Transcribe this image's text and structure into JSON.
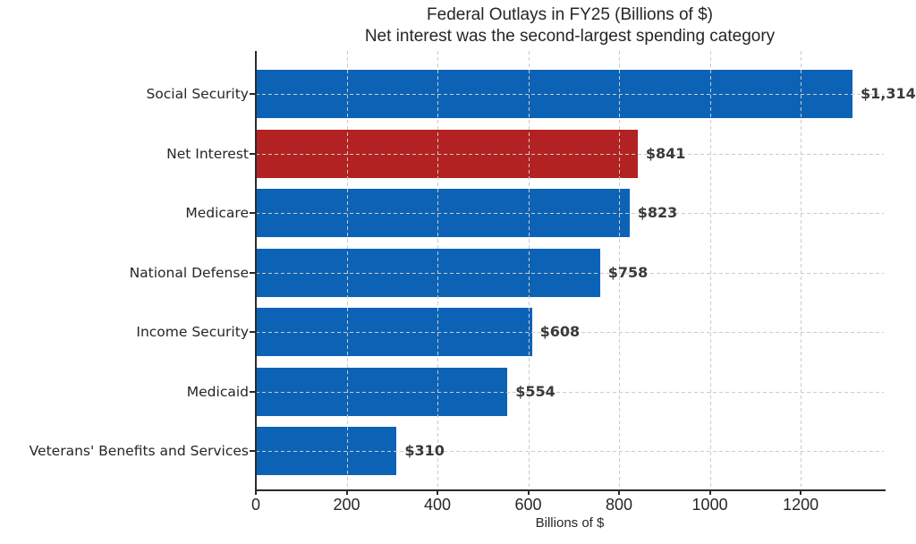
{
  "chart_data": {
    "type": "bar",
    "orientation": "horizontal",
    "title": "Federal Outlays in FY25 (Billions of $)",
    "subtitle": "Net interest was the second-largest spending category",
    "xlabel": "Billions of $",
    "categories": [
      "Social Security",
      "Net Interest",
      "Medicare",
      "National Defense",
      "Income Security",
      "Medicaid",
      "Veterans' Benefits and Services"
    ],
    "values": [
      1314,
      841,
      823,
      758,
      608,
      554,
      310
    ],
    "value_labels": [
      "$1,314",
      "$841",
      "$823",
      "$758",
      "$608",
      "$554",
      "$310"
    ],
    "bar_colors": [
      "#0C63B6",
      "#B22222",
      "#0C63B6",
      "#0C63B6",
      "#0C63B6",
      "#0C63B6",
      "#0C63B6"
    ],
    "highlight_category": "Net Interest",
    "x_ticks": [
      0,
      200,
      400,
      600,
      800,
      1000,
      1200
    ],
    "xlim": [
      0,
      1383
    ],
    "grid": true,
    "grid_style": "dashed",
    "legend": false,
    "colors": {
      "default_bar": "#0C63B6",
      "highlight_bar": "#B22222",
      "grid": "#cbcbcb",
      "axis": "#2b2b2b",
      "text": "#262626",
      "value_text": "#3a3a3a"
    }
  }
}
